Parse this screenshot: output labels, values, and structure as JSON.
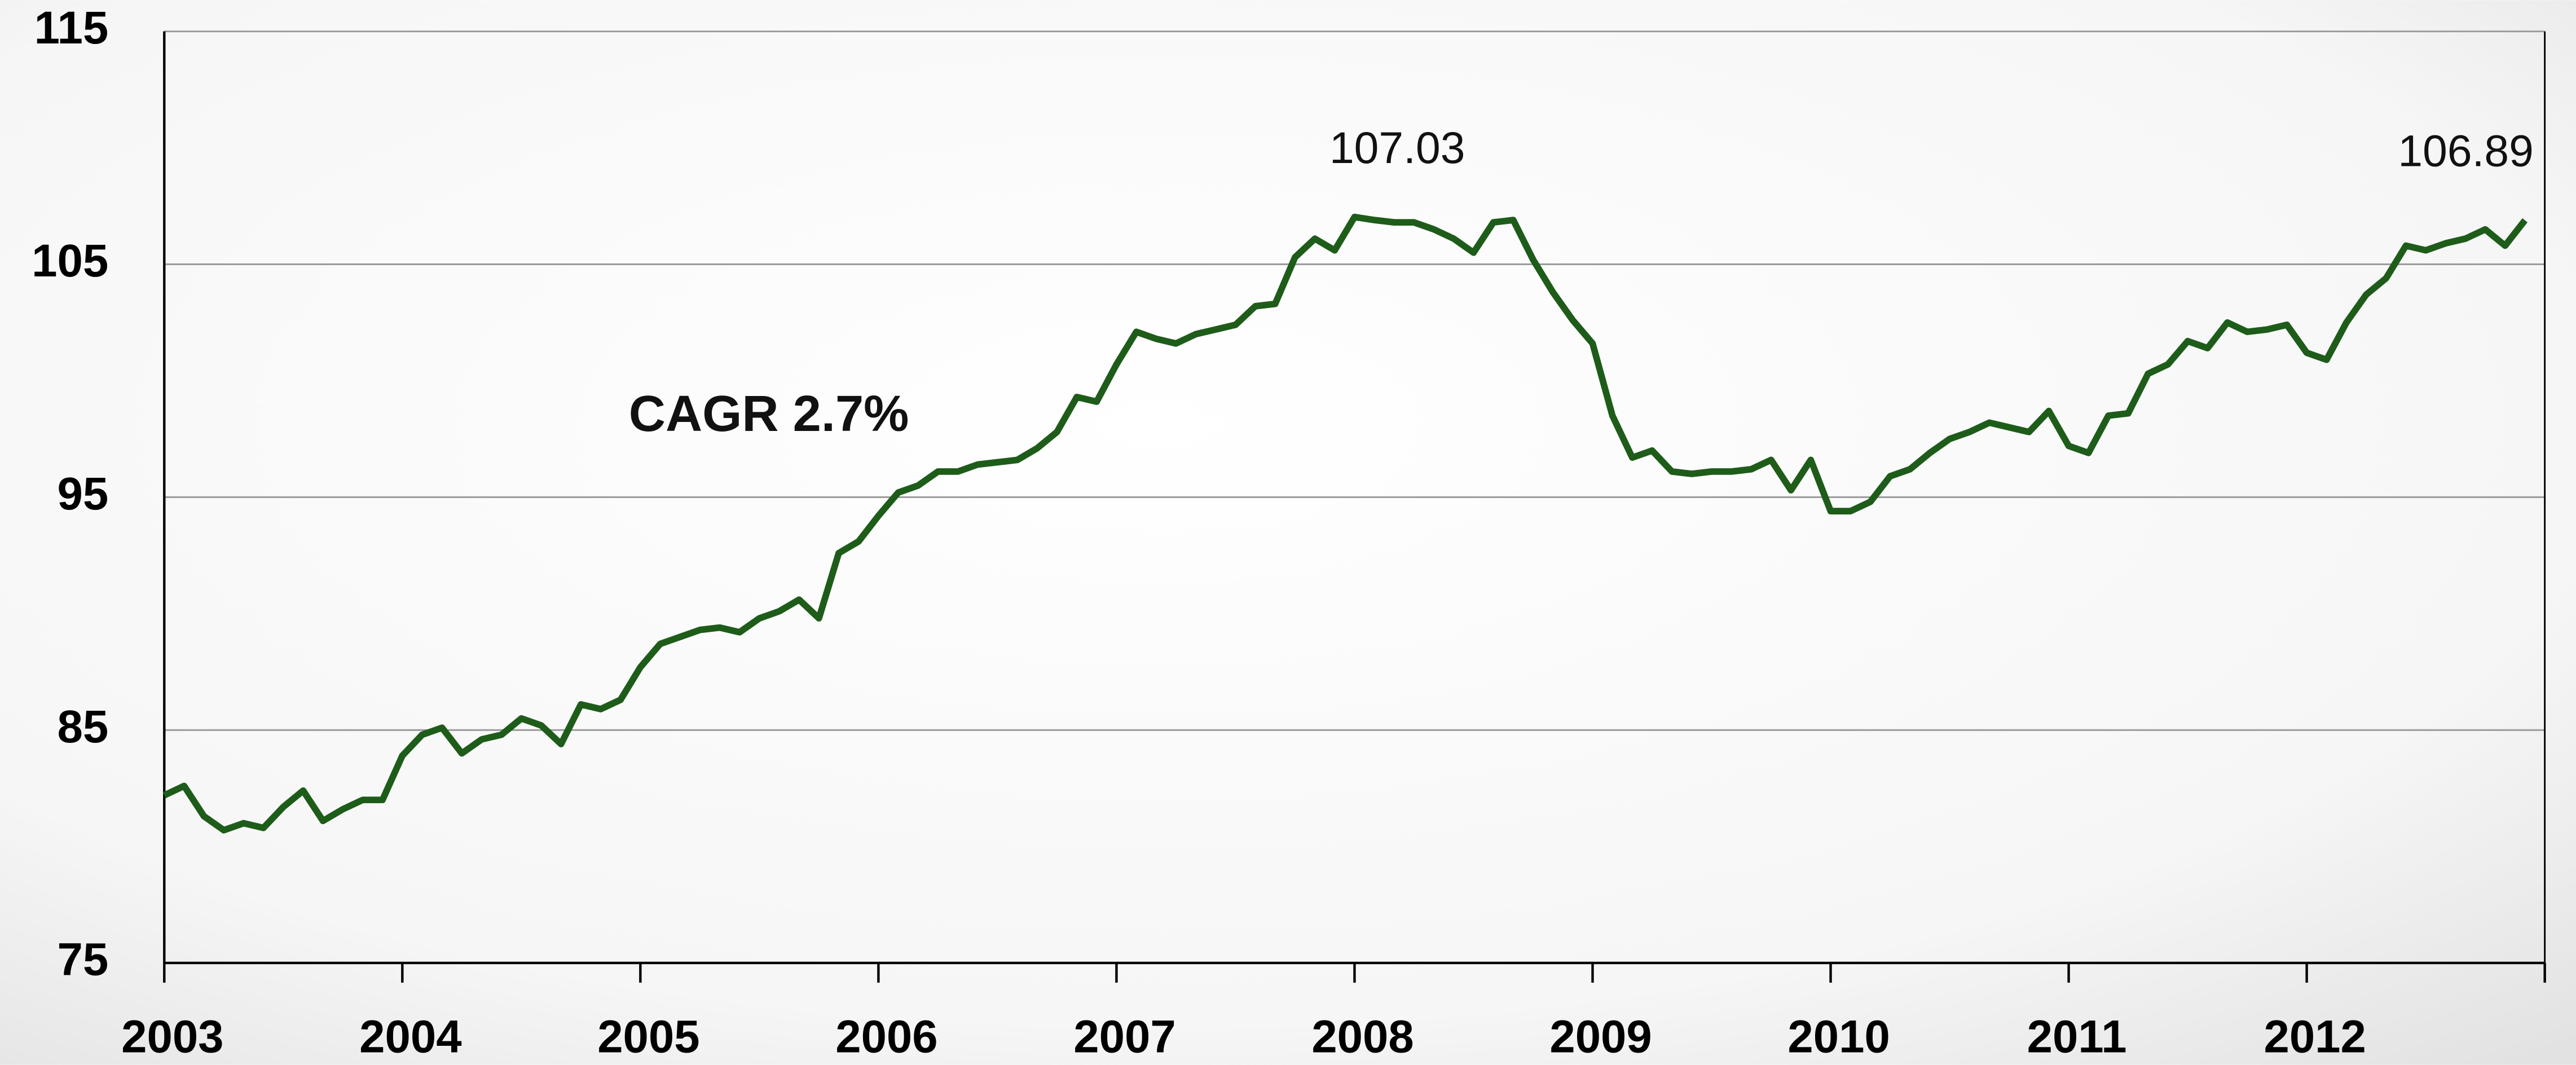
{
  "chart_data": {
    "type": "line",
    "annotation": "CAGR 2.7%",
    "color": "#1e5c1a",
    "categories": [
      "2003",
      null,
      null,
      null,
      null,
      null,
      null,
      null,
      null,
      null,
      null,
      null,
      "2004",
      null,
      null,
      null,
      null,
      null,
      null,
      null,
      null,
      null,
      null,
      null,
      "2005",
      null,
      null,
      null,
      null,
      null,
      null,
      null,
      null,
      null,
      null,
      null,
      "2006",
      null,
      null,
      null,
      null,
      null,
      null,
      null,
      null,
      null,
      null,
      null,
      "2007",
      null,
      null,
      null,
      null,
      null,
      null,
      null,
      null,
      null,
      null,
      null,
      "2008",
      null,
      null,
      null,
      null,
      null,
      null,
      null,
      null,
      null,
      null,
      null,
      "2009",
      null,
      null,
      null,
      null,
      null,
      null,
      null,
      null,
      null,
      null,
      null,
      "2010",
      null,
      null,
      null,
      null,
      null,
      null,
      null,
      null,
      null,
      null,
      null,
      "2011",
      null,
      null,
      null,
      null,
      null,
      null,
      null,
      null,
      null,
      null,
      null,
      "2012",
      null,
      null,
      null,
      null,
      null,
      null,
      null,
      null,
      null,
      null,
      null
    ],
    "values": [
      82.2,
      82.6,
      81.3,
      80.7,
      81.0,
      80.8,
      81.7,
      82.4,
      81.1,
      81.6,
      82.0,
      82.0,
      83.9,
      84.8,
      85.1,
      84.0,
      84.6,
      84.8,
      85.5,
      85.2,
      84.4,
      86.1,
      85.9,
      86.3,
      87.7,
      88.7,
      89.0,
      89.3,
      89.4,
      89.2,
      89.8,
      90.1,
      90.6,
      89.8,
      92.6,
      93.1,
      94.2,
      95.2,
      95.5,
      96.1,
      96.1,
      96.4,
      96.5,
      96.6,
      97.1,
      97.8,
      99.3,
      99.1,
      100.7,
      102.1,
      101.8,
      101.6,
      102.0,
      102.2,
      102.4,
      103.2,
      103.3,
      105.3,
      106.1,
      105.6,
      107.03,
      106.9,
      106.8,
      106.8,
      106.5,
      106.1,
      105.5,
      106.8,
      106.9,
      105.2,
      103.8,
      102.6,
      101.6,
      98.5,
      96.7,
      97.0,
      96.1,
      96.0,
      96.1,
      96.1,
      96.2,
      96.6,
      95.3,
      96.6,
      94.4,
      94.4,
      94.8,
      95.9,
      96.2,
      96.9,
      97.5,
      97.8,
      98.2,
      98.0,
      97.8,
      98.7,
      97.2,
      96.9,
      98.5,
      98.6,
      100.3,
      100.7,
      101.7,
      101.4,
      102.5,
      102.1,
      102.2,
      102.4,
      101.2,
      100.9,
      102.5,
      103.7,
      104.4,
      105.8,
      105.6,
      105.9,
      106.1,
      106.5,
      105.8,
      106.89
    ],
    "value_labels": [
      null,
      null,
      null,
      null,
      null,
      null,
      null,
      null,
      null,
      null,
      null,
      null,
      null,
      null,
      null,
      null,
      null,
      null,
      null,
      null,
      null,
      null,
      null,
      null,
      null,
      null,
      null,
      null,
      null,
      null,
      null,
      null,
      null,
      null,
      null,
      null,
      null,
      null,
      null,
      null,
      null,
      null,
      null,
      null,
      null,
      null,
      null,
      null,
      null,
      null,
      null,
      null,
      null,
      null,
      null,
      null,
      null,
      null,
      null,
      null,
      "107.03",
      null,
      null,
      null,
      null,
      null,
      null,
      null,
      null,
      null,
      null,
      null,
      null,
      null,
      null,
      null,
      null,
      null,
      null,
      null,
      null,
      null,
      null,
      null,
      null,
      null,
      null,
      null,
      null,
      null,
      null,
      null,
      null,
      null,
      null,
      null,
      null,
      null,
      null,
      null,
      null,
      null,
      null,
      null,
      null,
      null,
      null,
      null,
      null,
      null,
      null,
      null,
      null,
      null,
      null,
      null,
      null,
      null,
      null,
      "106.89"
    ],
    "ylim": [
      75,
      115
    ],
    "yticks": [
      75,
      85,
      95,
      105,
      115
    ],
    "grid": true
  }
}
